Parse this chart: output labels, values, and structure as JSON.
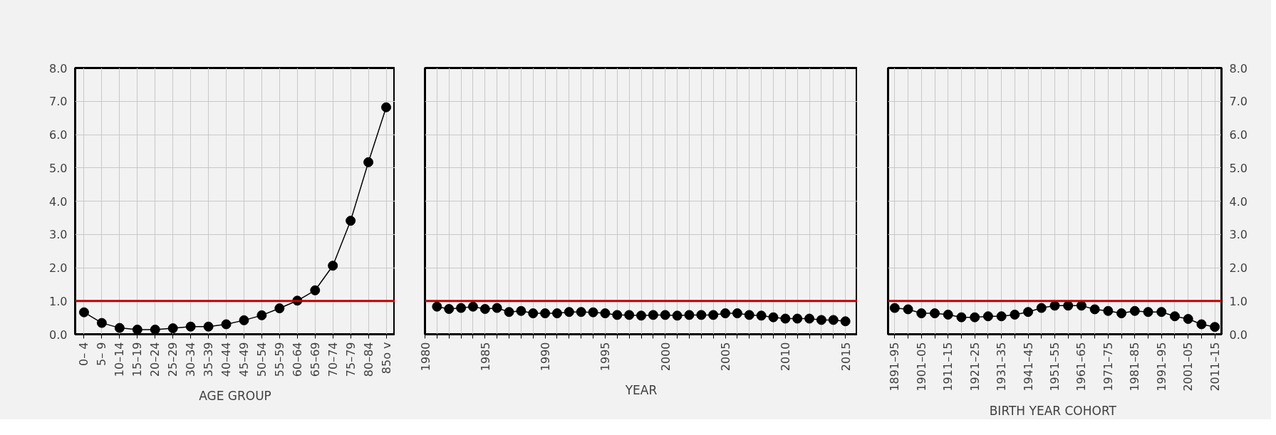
{
  "chart_data": [
    {
      "type": "line",
      "xlabel": "AGE GROUP",
      "categories": [
        "0– 4",
        "5– 9",
        "10–14",
        "15–19",
        "20–24",
        "25–29",
        "30–34",
        "35–39",
        "40–44",
        "45–49",
        "50–54",
        "55–59",
        "60–64",
        "65–69",
        "70–74",
        "75–79",
        "80–84",
        "85o v"
      ],
      "series": [
        {
          "color": "#000000",
          "values": [
            0.66,
            0.34,
            0.19,
            0.14,
            0.14,
            0.18,
            0.23,
            0.23,
            0.3,
            0.42,
            0.57,
            0.78,
            1.01,
            1.32,
            2.06,
            3.41,
            5.17,
            6.82
          ]
        }
      ],
      "ylim": [
        0,
        8
      ],
      "yticks": [
        {
          "value": 0,
          "label": "0.0"
        },
        {
          "value": 1,
          "label": "1.0"
        },
        {
          "value": 2,
          "label": "2.0"
        },
        {
          "value": 3,
          "label": "3.0"
        },
        {
          "value": 4,
          "label": "4.0"
        },
        {
          "value": 5,
          "label": "5.0"
        },
        {
          "value": 6,
          "label": "6.0"
        },
        {
          "value": 7,
          "label": "7.0"
        },
        {
          "value": 8,
          "label": "8.0"
        }
      ],
      "ref_lines": [
        {
          "axis": "y",
          "value": 1,
          "color": "#c00000"
        }
      ],
      "grid": true,
      "marker": "circle",
      "line_style": "solid"
    },
    {
      "type": "line",
      "xlabel": "YEAR",
      "x": [
        1981,
        1982,
        1983,
        1984,
        1985,
        1986,
        1987,
        1988,
        1989,
        1990,
        1991,
        1992,
        1993,
        1994,
        1995,
        1996,
        1997,
        1998,
        1999,
        2000,
        2001,
        2002,
        2003,
        2004,
        2005,
        2006,
        2007,
        2008,
        2009,
        2010,
        2011,
        2012,
        2013,
        2014,
        2015
      ],
      "series": [
        {
          "color": "#000000",
          "values": [
            0.83,
            0.76,
            0.79,
            0.83,
            0.76,
            0.79,
            0.67,
            0.7,
            0.63,
            0.63,
            0.63,
            0.67,
            0.67,
            0.66,
            0.63,
            0.58,
            0.58,
            0.56,
            0.58,
            0.58,
            0.56,
            0.58,
            0.58,
            0.58,
            0.63,
            0.63,
            0.58,
            0.56,
            0.51,
            0.47,
            0.47,
            0.47,
            0.43,
            0.43,
            0.39
          ]
        }
      ],
      "xlim": [
        1980,
        2016
      ],
      "xticks": [
        1980,
        {
          "value": 1981,
          "label": null
        },
        {
          "value": 1982,
          "label": null
        },
        {
          "value": 1983,
          "label": null
        },
        {
          "value": 1984,
          "label": null
        },
        1985,
        {
          "value": 1986,
          "label": null
        },
        {
          "value": 1987,
          "label": null
        },
        {
          "value": 1988,
          "label": null
        },
        {
          "value": 1989,
          "label": null
        },
        1990,
        {
          "value": 1991,
          "label": null
        },
        {
          "value": 1992,
          "label": null
        },
        {
          "value": 1993,
          "label": null
        },
        {
          "value": 1994,
          "label": null
        },
        1995,
        {
          "value": 1996,
          "label": null
        },
        {
          "value": 1997,
          "label": null
        },
        {
          "value": 1998,
          "label": null
        },
        {
          "value": 1999,
          "label": null
        },
        2000,
        {
          "value": 2001,
          "label": null
        },
        {
          "value": 2002,
          "label": null
        },
        {
          "value": 2003,
          "label": null
        },
        {
          "value": 2004,
          "label": null
        },
        2005,
        {
          "value": 2006,
          "label": null
        },
        {
          "value": 2007,
          "label": null
        },
        {
          "value": 2008,
          "label": null
        },
        {
          "value": 2009,
          "label": null
        },
        2010,
        {
          "value": 2011,
          "label": null
        },
        {
          "value": 2012,
          "label": null
        },
        {
          "value": 2013,
          "label": null
        },
        {
          "value": 2014,
          "label": null
        },
        2015,
        {
          "value": 2016,
          "label": null
        }
      ],
      "ylim": [
        0,
        8
      ],
      "yticks": [
        {
          "value": 0,
          "label": null
        },
        {
          "value": 1,
          "label": null
        },
        {
          "value": 2,
          "label": null
        },
        {
          "value": 3,
          "label": null
        },
        {
          "value": 4,
          "label": null
        },
        {
          "value": 5,
          "label": null
        },
        {
          "value": 6,
          "label": null
        },
        {
          "value": 7,
          "label": null
        },
        {
          "value": 8,
          "label": null
        }
      ],
      "tick_labels": "x",
      "ref_lines": [
        {
          "axis": "y",
          "value": 1,
          "color": "#c00000"
        }
      ],
      "grid": true,
      "marker": "circle",
      "line_style": "solid"
    },
    {
      "type": "line",
      "xlabel": "BIRTH  YEAR COHORT",
      "categories": [
        "1891–95",
        null,
        "1901–05",
        null,
        "1911–15",
        null,
        "1921–25",
        null,
        "1931–35",
        null,
        "1941–45",
        null,
        "1951–55",
        null,
        "1961–65",
        null,
        "1971–75",
        null,
        "1981–85",
        null,
        "1991–95",
        null,
        "2001–05",
        null,
        "2011–15"
      ],
      "series": [
        {
          "color": "#000000",
          "values": [
            0.79,
            0.75,
            0.63,
            0.63,
            0.59,
            0.51,
            0.51,
            0.54,
            0.54,
            0.59,
            0.67,
            0.79,
            0.86,
            0.86,
            0.86,
            0.75,
            0.7,
            0.63,
            0.7,
            0.67,
            0.67,
            0.54,
            0.46,
            0.3,
            0.22
          ]
        }
      ],
      "ylim": [
        0,
        8
      ],
      "yticks": [
        {
          "value": 0,
          "label": "0.0"
        },
        {
          "value": 1,
          "label": "1.0"
        },
        {
          "value": 2,
          "label": "2.0"
        },
        {
          "value": 3,
          "label": "3.0"
        },
        {
          "value": 4,
          "label": "4.0"
        },
        {
          "value": 5,
          "label": "5.0"
        },
        {
          "value": 6,
          "label": "6.0"
        },
        {
          "value": 7,
          "label": "7.0"
        },
        {
          "value": 8,
          "label": "8.0"
        }
      ],
      "ref_lines": [
        {
          "axis": "y",
          "value": 1,
          "color": "#c00000"
        }
      ],
      "grid": true,
      "marker": "circle",
      "line_style": "solid"
    }
  ]
}
